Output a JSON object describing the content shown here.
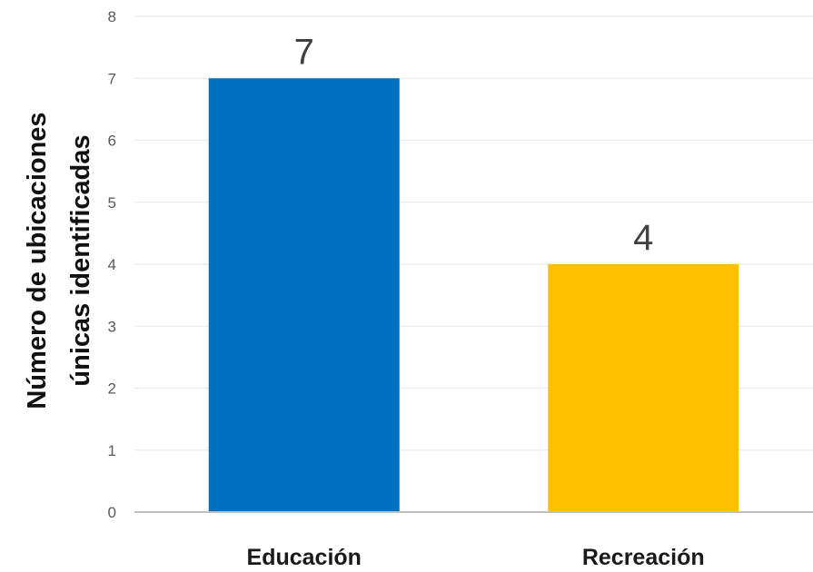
{
  "chart_data": {
    "type": "bar",
    "categories": [
      "Educación",
      "Recreación"
    ],
    "values": [
      7,
      4
    ],
    "data_labels": [
      "7",
      "4"
    ],
    "bar_colors": [
      "#0070C0",
      "#FFC000"
    ],
    "ylabel_lines": [
      "Número de ubicaciones",
      "únicas identificadas"
    ],
    "xlabel": "",
    "title": "",
    "ylim": [
      0,
      8
    ],
    "y_ticks": [
      "0",
      "1",
      "2",
      "3",
      "4",
      "5",
      "6",
      "7",
      "8"
    ],
    "grid": true,
    "legend": "none",
    "gridline_color": "#ebebeb",
    "axis_color": "#bfbfbf"
  }
}
